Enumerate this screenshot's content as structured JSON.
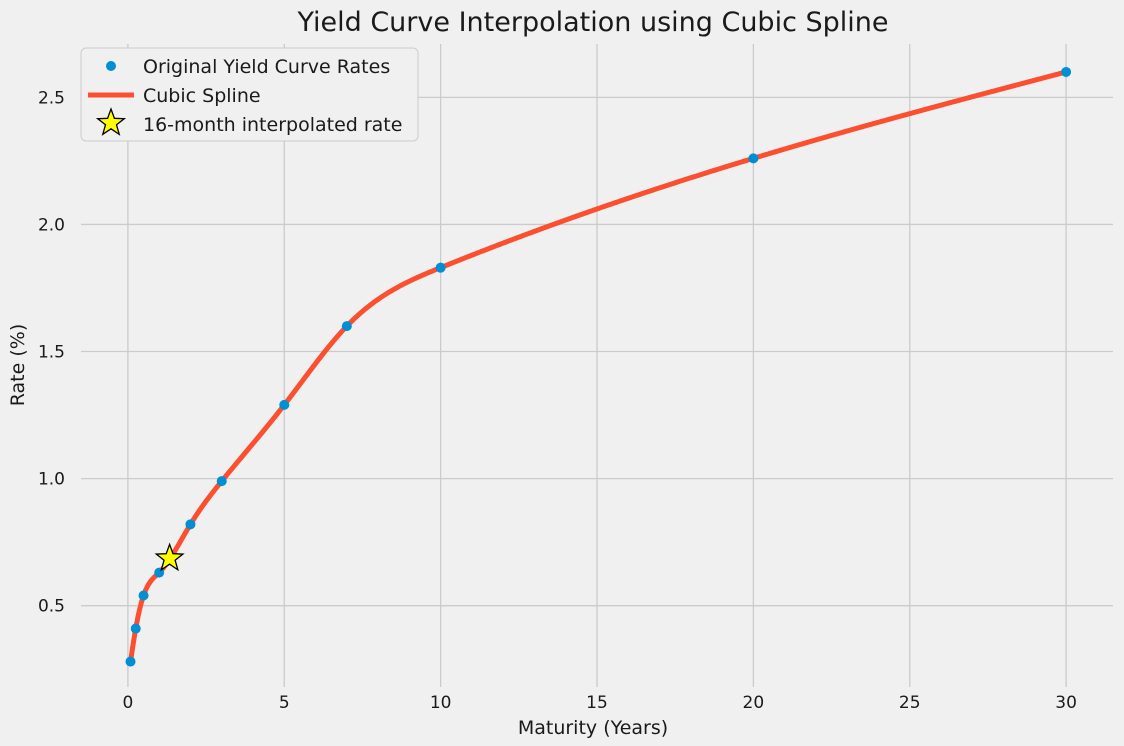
{
  "chart_data": {
    "type": "line",
    "title": "Yield Curve Interpolation using Cubic Spline",
    "xlabel": "Maturity (Years)",
    "ylabel": "Rate (%)",
    "xlim": [
      -1.5,
      31.5
    ],
    "ylim": [
      0.18,
      2.71
    ],
    "xticks": [
      0,
      5,
      10,
      15,
      20,
      25,
      30
    ],
    "yticks": [
      0.5,
      1.0,
      1.5,
      2.0,
      2.5
    ],
    "xtick_labels": [
      "0",
      "5",
      "10",
      "15",
      "20",
      "25",
      "30"
    ],
    "ytick_labels": [
      "0.5",
      "1.0",
      "1.5",
      "2.0",
      "2.5"
    ],
    "grid": true,
    "legend_position": "top-left",
    "series": [
      {
        "name": "Original Yield Curve Rates",
        "kind": "scatter",
        "color": "#008fd5",
        "x": [
          0.083,
          0.25,
          0.5,
          1,
          2,
          3,
          5,
          7,
          10,
          20,
          30
        ],
        "y": [
          0.28,
          0.41,
          0.54,
          0.63,
          0.82,
          0.99,
          1.29,
          1.6,
          1.83,
          2.26,
          2.6
        ]
      },
      {
        "name": "Cubic Spline",
        "kind": "line",
        "color": "#fc4f30",
        "x": [
          0.083,
          0.25,
          0.5,
          1,
          2,
          3,
          5,
          7,
          10,
          20,
          30
        ],
        "y": [
          0.28,
          0.41,
          0.54,
          0.63,
          0.82,
          0.99,
          1.29,
          1.6,
          1.83,
          2.26,
          2.6
        ]
      },
      {
        "name": "16-month interpolated rate",
        "kind": "marker",
        "color": "#ffff00",
        "edge_color": "#000000",
        "marker": "star",
        "x": [
          1.333
        ],
        "y": [
          0.686
        ]
      }
    ]
  }
}
